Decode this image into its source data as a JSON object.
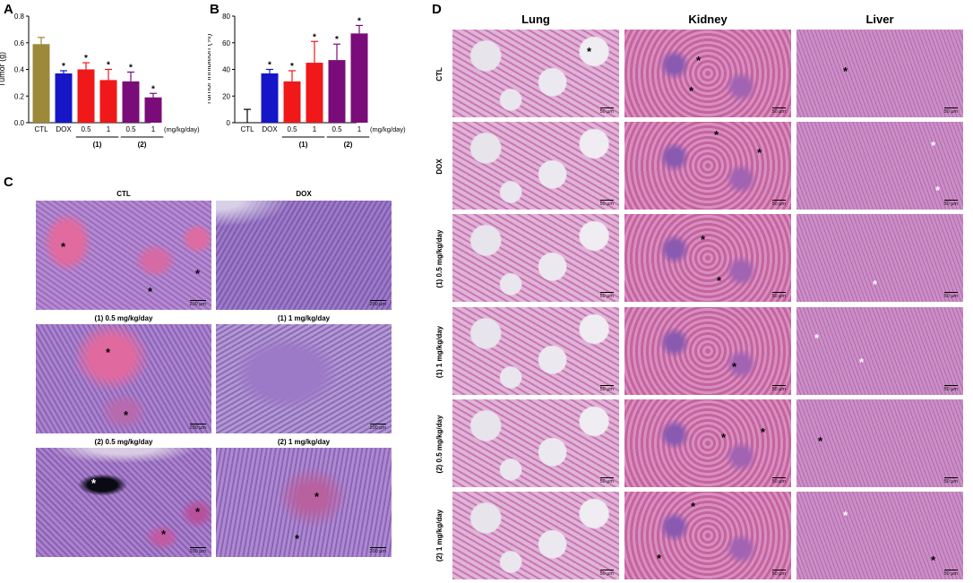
{
  "panels": {
    "A": "A",
    "B": "B",
    "C": "C",
    "D": "D"
  },
  "colors": {
    "olive": "#9c8a3a",
    "blue": "#1616c8",
    "red": "#f01818",
    "purple": "#7a0c7a",
    "tissue_pink": "#c06aa8",
    "tissue_purple": "#8a5ab6",
    "necrosis": "#e56a9a"
  },
  "chartA": {
    "ylabel": "Tumor (g)",
    "yticks": [
      "0.0",
      "0.2",
      "0.4",
      "0.6",
      "0.8"
    ],
    "categories": [
      "CTL",
      "DOX",
      "0.5",
      "1",
      "0.5",
      "1"
    ],
    "unit": "(mg/kg/day)",
    "groups": [
      "(1)",
      "(2)"
    ],
    "star": "*"
  },
  "chartB": {
    "ylabel": "Tumor inhibition (%)",
    "yticks": [
      "0",
      "20",
      "40",
      "60",
      "80"
    ],
    "categories": [
      "CTL",
      "DOX",
      "0.5",
      "1",
      "0.5",
      "1"
    ],
    "unit": "(mg/kg/day)",
    "groups": [
      "(1)",
      "(2)"
    ],
    "star": "*"
  },
  "chart_data": [
    {
      "type": "bar",
      "categories": [
        "CTL",
        "DOX",
        "0.5",
        "1",
        "0.5",
        "1"
      ],
      "values": [
        0.59,
        0.37,
        0.4,
        0.32,
        0.31,
        0.19
      ],
      "errors": [
        0.05,
        0.02,
        0.05,
        0.08,
        0.07,
        0.03
      ],
      "ylabel": "Tumor (g)",
      "ylim": [
        0,
        0.8
      ],
      "significant": [
        false,
        true,
        true,
        true,
        true,
        true
      ]
    },
    {
      "type": "bar",
      "categories": [
        "CTL",
        "DOX",
        "0.5",
        "1",
        "0.5",
        "1"
      ],
      "values": [
        0,
        37,
        31,
        45,
        47,
        67
      ],
      "errors": [
        10,
        3,
        8,
        16,
        12,
        6
      ],
      "ylabel": "Tumor inhibition (%)",
      "ylim": [
        0,
        80
      ],
      "significant": [
        false,
        true,
        true,
        true,
        true,
        true
      ]
    }
  ],
  "panelC": {
    "captions": [
      "CTL",
      "DOX",
      "(1) 0.5 mg/kg/day",
      "(1) 1 mg/kg/day",
      "(2) 0.5 mg/kg/day",
      "(2) 1 mg/kg/day"
    ],
    "scale": "200 μm"
  },
  "panelD": {
    "columns": [
      "Lung",
      "Kidney",
      "Liver"
    ],
    "rows": [
      "CTL",
      "DOX",
      "(1) 0.5 mg/kg/day",
      "(1) 1 mg/kg/day",
      "(2) 0.5 mg/kg/day",
      "(2) 1 mg/kg/day"
    ],
    "scale": "50 μm"
  }
}
